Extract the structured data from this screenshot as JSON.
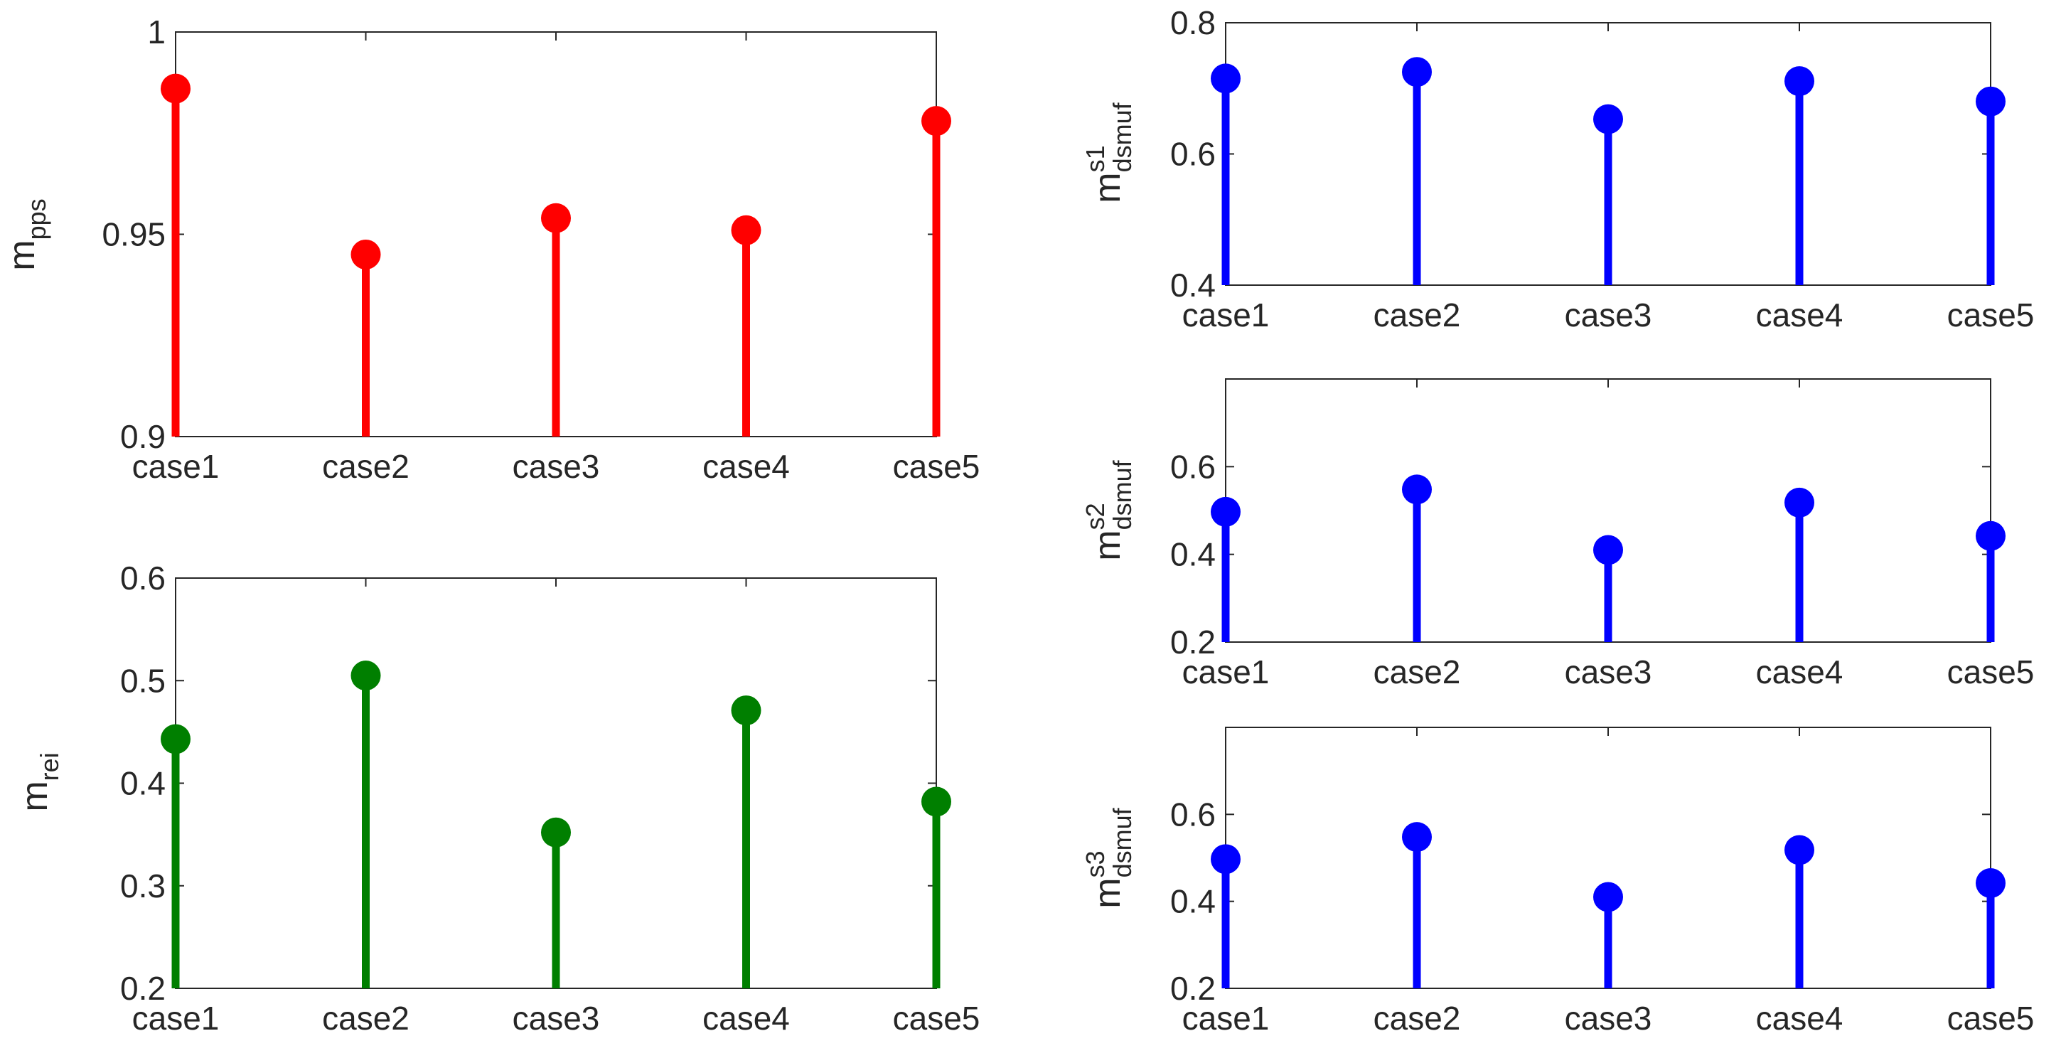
{
  "chart_data": [
    {
      "type": "stem",
      "color": "#ff0000",
      "categories": [
        "case1",
        "case2",
        "case3",
        "case4",
        "case5"
      ],
      "values": [
        0.986,
        0.945,
        0.954,
        0.951,
        0.978
      ],
      "ylabel": "m",
      "ylabel_sub": "pps",
      "ylabel_sup": "",
      "ylim": [
        0.9,
        1.0
      ],
      "yticks": [
        0.9,
        0.95,
        1.0
      ],
      "ytick_labels": [
        "0.9",
        "0.95",
        "1"
      ]
    },
    {
      "type": "stem",
      "color": "#007f00",
      "categories": [
        "case1",
        "case2",
        "case3",
        "case4",
        "case5"
      ],
      "values": [
        0.443,
        0.505,
        0.352,
        0.471,
        0.382
      ],
      "ylabel": "m",
      "ylabel_sub": "rei",
      "ylabel_sup": "",
      "ylim": [
        0.2,
        0.6
      ],
      "yticks": [
        0.2,
        0.3,
        0.4,
        0.5,
        0.6
      ],
      "ytick_labels": [
        "0.2",
        "0.3",
        "0.4",
        "0.5",
        "0.6"
      ]
    },
    {
      "type": "stem",
      "color": "#0000ff",
      "categories": [
        "case1",
        "case2",
        "case3",
        "case4",
        "case5"
      ],
      "values": [
        0.715,
        0.725,
        0.653,
        0.711,
        0.68
      ],
      "ylabel": "m",
      "ylabel_sub": "dsmuf",
      "ylabel_sup": "s1",
      "ylim": [
        0.4,
        0.8
      ],
      "yticks": [
        0.4,
        0.6,
        0.8
      ],
      "ytick_labels": [
        "0.4",
        "0.6",
        "0.8"
      ]
    },
    {
      "type": "stem",
      "color": "#0000ff",
      "categories": [
        "case1",
        "case2",
        "case3",
        "case4",
        "case5"
      ],
      "values": [
        0.497,
        0.548,
        0.41,
        0.518,
        0.442
      ],
      "ylabel": "m",
      "ylabel_sub": "dsmuf",
      "ylabel_sup": "s2",
      "ylim": [
        0.2,
        0.8
      ],
      "yticks": [
        0.2,
        0.4,
        0.6
      ],
      "ytick_labels": [
        "0.2",
        "0.4",
        "0.6"
      ]
    },
    {
      "type": "stem",
      "color": "#0000ff",
      "categories": [
        "case1",
        "case2",
        "case3",
        "case4",
        "case5"
      ],
      "values": [
        0.497,
        0.548,
        0.41,
        0.518,
        0.442
      ],
      "ylabel": "m",
      "ylabel_sub": "dsmuf",
      "ylabel_sup": "s3",
      "ylim": [
        0.2,
        0.8
      ],
      "yticks": [
        0.2,
        0.4,
        0.6
      ],
      "ytick_labels": [
        "0.2",
        "0.4",
        "0.6"
      ]
    }
  ]
}
